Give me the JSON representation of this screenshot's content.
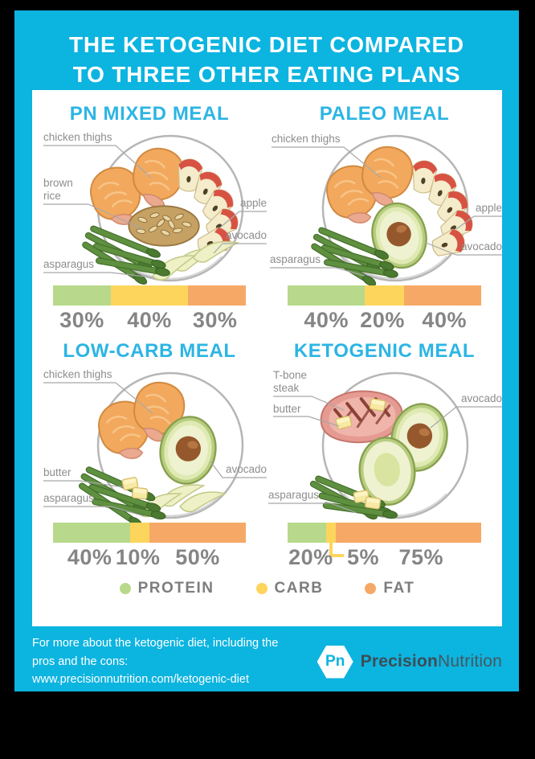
{
  "poster": {
    "title_line1": "THE KETOGENIC DIET COMPARED",
    "title_line2": "TO THREE OTHER EATING PLANS",
    "colors": {
      "background": "#0cb4e0",
      "accent": "#2cb5e3",
      "protein": "#b8d98b",
      "carb": "#fdd55c",
      "fat": "#f6a967"
    },
    "legend": {
      "items": [
        {
          "label": "PROTEIN",
          "color": "#b8d98b"
        },
        {
          "label": "CARB",
          "color": "#fdd55c"
        },
        {
          "label": "FAT",
          "color": "#f6a967"
        }
      ]
    },
    "footer": {
      "note_line1": "For more about the ketogenic diet, including the",
      "note_line2": "pros and the cons: www.precisionnutrition.com/ketogenic-diet",
      "logo_monogram": "Pn",
      "brand_part1": "Precision",
      "brand_part2": "Nutrition"
    }
  },
  "chart_data": [
    {
      "type": "bar",
      "title": "PN MIXED MEAL",
      "categories": [
        "PROTEIN",
        "CARB",
        "FAT"
      ],
      "values": [
        30,
        40,
        30
      ],
      "value_labels": [
        "30%",
        "40%",
        "30%"
      ],
      "label_centers": [
        15,
        50,
        84
      ],
      "food_labels": {
        "chicken": "chicken thighs",
        "brown_line1": "brown",
        "brown_line2": "rice",
        "apple": "apple",
        "avocado": "avocado",
        "asparagus": "asparagus"
      }
    },
    {
      "type": "bar",
      "title": "PALEO MEAL",
      "categories": [
        "PROTEIN",
        "CARB",
        "FAT"
      ],
      "values": [
        40,
        20,
        40
      ],
      "value_labels": [
        "40%",
        "20%",
        "40%"
      ],
      "label_centers": [
        20,
        49,
        81
      ],
      "food_labels": {
        "chicken": "chicken thighs",
        "apple": "apple",
        "avocado": "avocado",
        "asparagus": "asparagus"
      }
    },
    {
      "type": "bar",
      "title": "LOW-CARB MEAL",
      "categories": [
        "PROTEIN",
        "CARB",
        "FAT"
      ],
      "values": [
        40,
        10,
        50
      ],
      "value_labels": [
        "40%",
        "10%",
        "50%"
      ],
      "label_centers": [
        19,
        44,
        75
      ],
      "food_labels": {
        "chicken": "chicken thighs",
        "butter": "butter",
        "asparagus": "asparagus",
        "avocado": "avocado"
      }
    },
    {
      "type": "bar",
      "title": "KETOGENIC MEAL",
      "categories": [
        "PROTEIN",
        "CARB",
        "FAT"
      ],
      "values": [
        20,
        5,
        75
      ],
      "value_labels": [
        "20%",
        "5%",
        "75%"
      ],
      "label_centers": [
        12,
        39,
        69
      ],
      "food_labels": {
        "tbone_line1": "T-bone",
        "tbone_line2": "steak",
        "butter": "butter",
        "avocado": "avocado",
        "asparagus": "asparagus"
      }
    }
  ]
}
